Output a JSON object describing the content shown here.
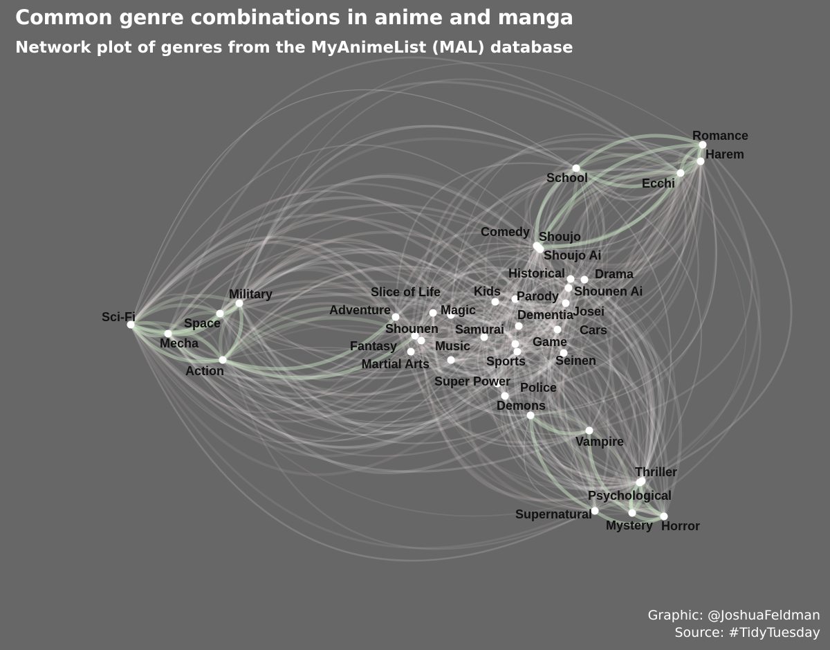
{
  "title": "Common genre combinations in anime and manga",
  "subtitle": "Network plot of genres from the MyAnimeList (MAL) database",
  "caption": {
    "graphic": "Graphic: @JoshuaFeldman",
    "source": "Source: #TidyTuesday"
  },
  "colors": {
    "background": "#676767",
    "edge": "#ffffff",
    "edge_tint": "#e8d8d8",
    "strong_edge": "#cfe8c8",
    "node": "#ffffff",
    "label": "#111111"
  },
  "nodes": [
    {
      "name": "Romance"
    },
    {
      "name": "Harem"
    },
    {
      "name": "Ecchi"
    },
    {
      "name": "School"
    },
    {
      "name": "Comedy"
    },
    {
      "name": "Shoujo"
    },
    {
      "name": "Shoujo Ai"
    },
    {
      "name": "Historical"
    },
    {
      "name": "Drama"
    },
    {
      "name": "Shounen Ai"
    },
    {
      "name": "Kids"
    },
    {
      "name": "Parody"
    },
    {
      "name": "Josei"
    },
    {
      "name": "Slice of Life"
    },
    {
      "name": "Magic"
    },
    {
      "name": "Dementia"
    },
    {
      "name": "Cars"
    },
    {
      "name": "Adventure"
    },
    {
      "name": "Shounen"
    },
    {
      "name": "Samurai"
    },
    {
      "name": "Game"
    },
    {
      "name": "Fantasy"
    },
    {
      "name": "Music"
    },
    {
      "name": "Martial Arts"
    },
    {
      "name": "Sports"
    },
    {
      "name": "Seinen"
    },
    {
      "name": "Super Power"
    },
    {
      "name": "Police"
    },
    {
      "name": "Demons"
    },
    {
      "name": "Vampire"
    },
    {
      "name": "Thriller"
    },
    {
      "name": "Psychological"
    },
    {
      "name": "Supernatural"
    },
    {
      "name": "Mystery"
    },
    {
      "name": "Horror"
    },
    {
      "name": "Military"
    },
    {
      "name": "Sci-Fi"
    },
    {
      "name": "Space"
    },
    {
      "name": "Mecha"
    },
    {
      "name": "Action"
    }
  ],
  "strong_edges": [
    [
      "Sci-Fi",
      "Mecha"
    ],
    [
      "Sci-Fi",
      "Space"
    ],
    [
      "Sci-Fi",
      "Action"
    ],
    [
      "Sci-Fi",
      "Military"
    ],
    [
      "Mecha",
      "Space"
    ],
    [
      "Mecha",
      "Action"
    ],
    [
      "Space",
      "Military"
    ],
    [
      "Action",
      "Military"
    ],
    [
      "Action",
      "Adventure"
    ],
    [
      "Action",
      "Shounen"
    ],
    [
      "Romance",
      "Harem"
    ],
    [
      "Romance",
      "Ecchi"
    ],
    [
      "Romance",
      "School"
    ],
    [
      "Harem",
      "Ecchi"
    ],
    [
      "School",
      "Ecchi"
    ],
    [
      "School",
      "Comedy"
    ],
    [
      "Romance",
      "Shoujo"
    ],
    [
      "Comedy",
      "Ecchi"
    ],
    [
      "Demons",
      "Vampire"
    ],
    [
      "Demons",
      "Supernatural"
    ],
    [
      "Vampire",
      "Mystery"
    ],
    [
      "Thriller",
      "Psychological"
    ],
    [
      "Psychological",
      "Mystery"
    ],
    [
      "Mystery",
      "Horror"
    ],
    [
      "Supernatural",
      "Horror"
    ],
    [
      "Thriller",
      "Mystery"
    ],
    [
      "Psychological",
      "Horror"
    ]
  ]
}
